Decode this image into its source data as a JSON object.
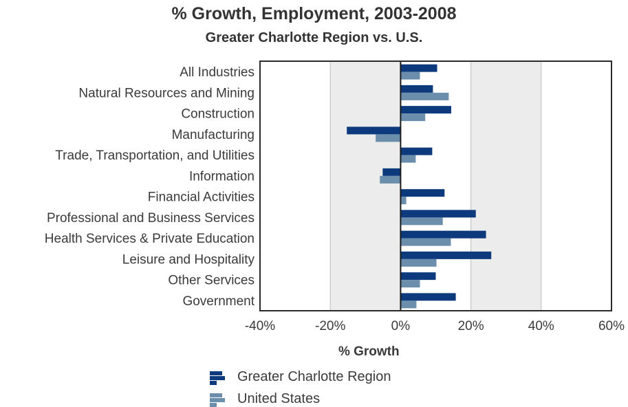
{
  "chart_data": {
    "type": "bar",
    "orientation": "horizontal",
    "title": "% Growth, Employment, 2003-2008",
    "subtitle": "Greater Charlotte Region vs. U.S.",
    "xlabel": "% Growth",
    "ylabel": "",
    "xlim": [
      -40,
      60
    ],
    "x_ticks": [
      "-40%",
      "-20%",
      "0%",
      "20%",
      "40%",
      "60%"
    ],
    "x_tick_values": [
      -40,
      -20,
      0,
      20,
      40,
      60
    ],
    "categories": [
      "All Industries",
      "Natural Resources and Mining",
      "Construction",
      "Manufacturing",
      "Trade, Transportation, and Utilities",
      "Information",
      "Financial Activities",
      "Professional and Business Services",
      "Health Services & Private Education",
      "Leisure and Hospitality",
      "Other Services",
      "Government"
    ],
    "series": [
      {
        "name": "Greater Charlotte Region",
        "color": "#0d3a7c",
        "values": [
          10.4,
          9.2,
          14.4,
          -15.3,
          9.0,
          -5.1,
          12.5,
          21.4,
          24.3,
          25.8,
          10.0,
          15.7
        ]
      },
      {
        "name": "United States",
        "color": "#6b8ead",
        "values": [
          5.5,
          13.7,
          7.0,
          -7.1,
          4.3,
          -5.9,
          1.6,
          12.0,
          14.3,
          10.2,
          5.5,
          4.5
        ]
      }
    ],
    "legend_position": "bottom-left",
    "grid": true,
    "band_color": "#ececec"
  }
}
